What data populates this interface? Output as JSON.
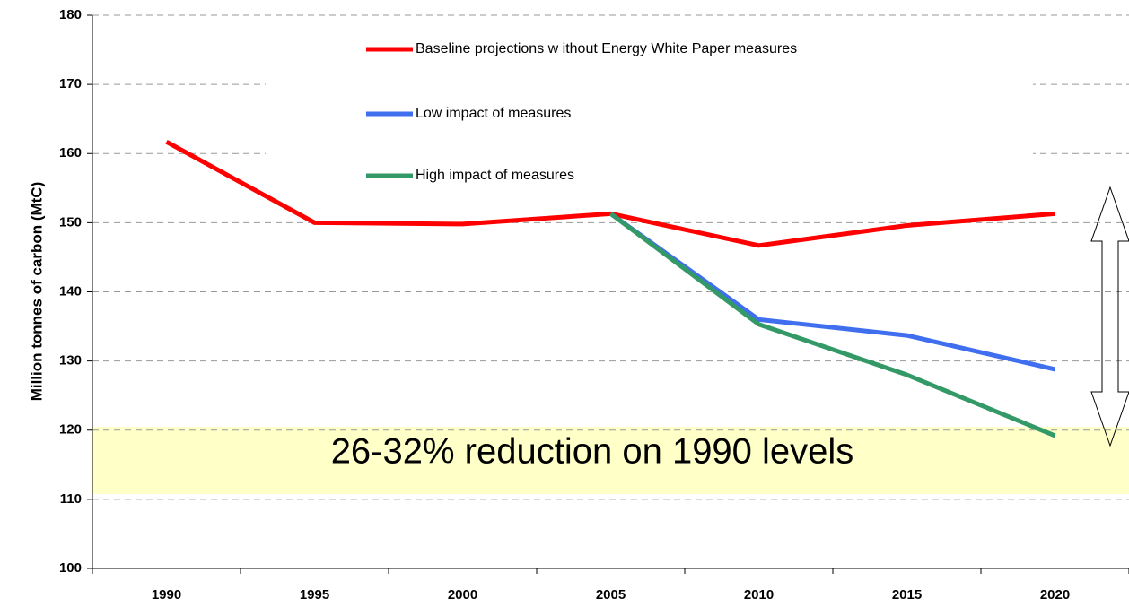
{
  "chart_data": {
    "type": "line",
    "ylabel": "Million tonnes of carbon (MtC)",
    "categories": [
      "1990",
      "1995",
      "2000",
      "2005",
      "2010",
      "2015",
      "2020"
    ],
    "series": [
      {
        "name": "Baseline projections w ithout Energy White Paper measures",
        "color": "#ff0000",
        "values": [
          161.7,
          150.0,
          149.8,
          151.3,
          146.7,
          149.6,
          151.3
        ]
      },
      {
        "name": "Low  impact of measures",
        "color": "#3f6fef",
        "values": [
          null,
          null,
          null,
          151.3,
          136.0,
          133.7,
          128.8
        ]
      },
      {
        "name": "High impact of measures",
        "color": "#339966",
        "values": [
          null,
          null,
          null,
          151.3,
          135.3,
          128.0,
          119.2
        ]
      }
    ],
    "annotation": "26-32% reduction on 1990 levels",
    "ylim": [
      100,
      180
    ],
    "yticks": [
      100,
      110,
      120,
      130,
      140,
      150,
      160,
      170,
      180
    ],
    "grid": true
  }
}
